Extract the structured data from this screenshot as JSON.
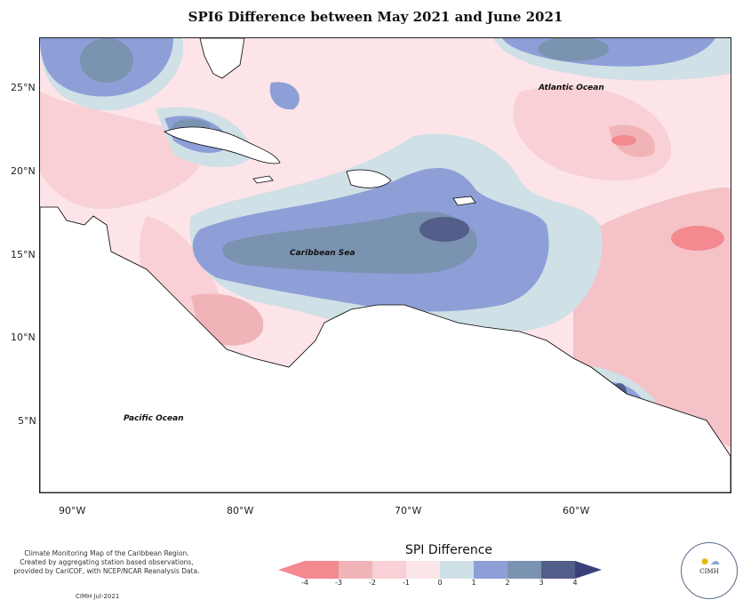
{
  "title": "SPI6 Difference between May 2021 and June 2021",
  "lat_labels": [
    "25°N",
    "20°N",
    "15°N",
    "10°N",
    "5°N"
  ],
  "lon_labels": [
    "90°W",
    "80°W",
    "70°W",
    "60°W"
  ],
  "ocean_labels": {
    "atlantic": "Atlantic Ocean",
    "caribbean": "Caribbean Sea",
    "pacific": "Pacific Ocean"
  },
  "credit_lines": [
    "Climate Monitoring Map of the Caribbean Region.",
    "Created by aggregating station based observations,",
    "provided by CariCOF, with NCEP/NCAR Reanalysis Data."
  ],
  "date_stamp": "CIMH Jul-2021",
  "legend": {
    "title": "SPI Difference",
    "ticks": [
      "-4",
      "-3",
      "-2",
      "-1",
      "0",
      "1",
      "2",
      "3",
      "4"
    ],
    "colors": [
      "#f28a90",
      "#f0b4b8",
      "#f8d0d6",
      "#fce6ea",
      "#cfe0e6",
      "#8e9fd8",
      "#7a93b0",
      "#545e8a",
      "#3b3f7a"
    ]
  },
  "logo": {
    "text": "CIMH",
    "icons": [
      "sun-icon",
      "cloud-icon"
    ]
  }
}
